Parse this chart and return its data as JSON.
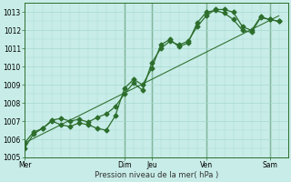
{
  "title": "",
  "xlabel": "Pression niveau de la mer( hPa )",
  "ylabel": "",
  "bg_color": "#c8ede8",
  "grid_color": "#a8d8d0",
  "line_color": "#2d6e2d",
  "ylim": [
    1005,
    1013.5
  ],
  "yticks": [
    1005,
    1006,
    1007,
    1008,
    1009,
    1010,
    1011,
    1012,
    1013
  ],
  "day_labels": [
    "Mer",
    "Dim",
    "Jeu",
    "Ven",
    "Sam"
  ],
  "day_positions": [
    0,
    11,
    14,
    20,
    27
  ],
  "xlim": [
    0,
    29
  ],
  "line1_x": [
    0,
    1,
    2,
    3,
    4,
    5,
    6,
    7,
    8,
    9,
    10,
    11,
    12,
    13,
    14,
    15,
    16,
    17,
    18,
    19,
    20,
    21,
    22,
    23,
    24,
    25,
    26,
    27,
    28
  ],
  "line1_y": [
    1005.5,
    1006.3,
    1006.6,
    1007.0,
    1006.8,
    1006.7,
    1006.9,
    1006.8,
    1006.6,
    1006.5,
    1007.3,
    1008.8,
    1009.3,
    1009.0,
    1009.9,
    1011.2,
    1011.5,
    1011.1,
    1011.3,
    1012.4,
    1013.0,
    1013.1,
    1012.95,
    1012.6,
    1012.0,
    1011.9,
    1012.7,
    1012.6,
    1012.5
  ],
  "line2_x": [
    0,
    1,
    2,
    3,
    4,
    5,
    6,
    7,
    8,
    9,
    10,
    11,
    12,
    13,
    14,
    15,
    16,
    17,
    18,
    19,
    20,
    21,
    22,
    23,
    24,
    25,
    26,
    27,
    28
  ],
  "line2_y": [
    1005.8,
    1006.4,
    1006.6,
    1007.05,
    1007.15,
    1007.0,
    1007.1,
    1006.95,
    1007.2,
    1007.4,
    1007.8,
    1008.5,
    1009.1,
    1008.7,
    1010.2,
    1011.0,
    1011.4,
    1011.2,
    1011.4,
    1012.2,
    1012.8,
    1013.15,
    1013.15,
    1013.0,
    1012.2,
    1012.0,
    1012.75,
    1012.6,
    1012.5
  ],
  "trend_x": [
    0,
    28
  ],
  "trend_y": [
    1005.8,
    1012.8
  ],
  "marker_size": 2.5,
  "linewidth": 0.9
}
